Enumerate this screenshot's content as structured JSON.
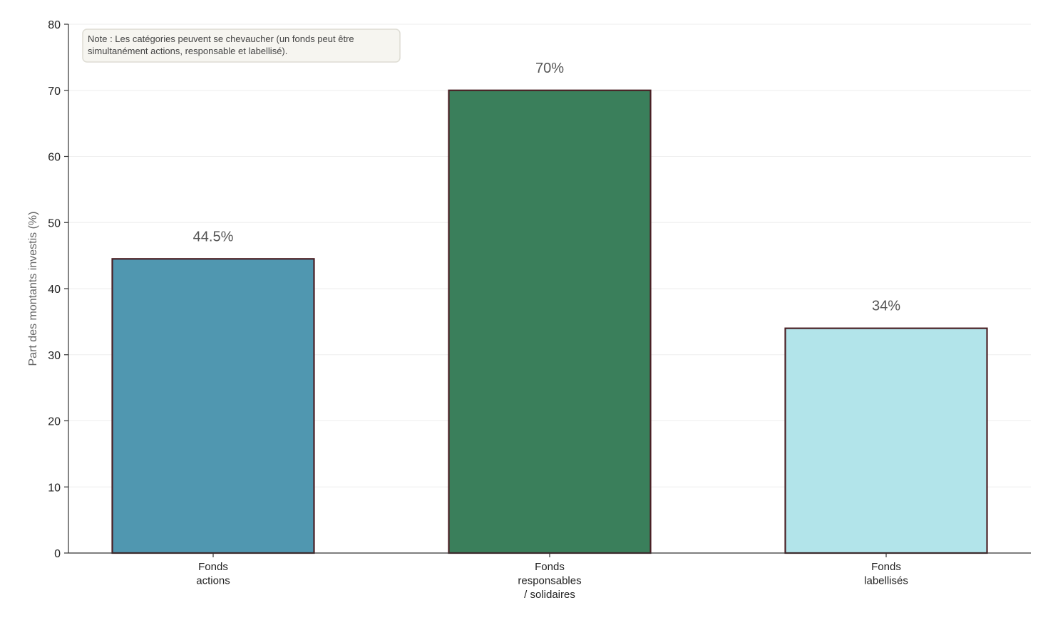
{
  "chart_data": {
    "type": "bar",
    "title": "",
    "xlabel": "",
    "ylabel": "Part des montants investis (%)",
    "ylim": [
      0,
      80
    ],
    "yticks": [
      0,
      10,
      20,
      30,
      40,
      50,
      60,
      70,
      80
    ],
    "grid": true,
    "categories": [
      [
        "Fonds",
        "actions"
      ],
      [
        "Fonds",
        "responsables",
        "/ solidaires"
      ],
      [
        "Fonds",
        "labellisés"
      ]
    ],
    "values": [
      44.5,
      70,
      34
    ],
    "value_labels": [
      "44.5%",
      "70%",
      "34%"
    ],
    "colors": [
      "#5097b0",
      "#3a7f5b",
      "#b2e4ea"
    ],
    "edge_color": "#4a1f24",
    "note": [
      "Note : Les catégories peuvent se chevaucher (un fonds peut être",
      "simultanément actions, responsable et labellisé)."
    ]
  }
}
